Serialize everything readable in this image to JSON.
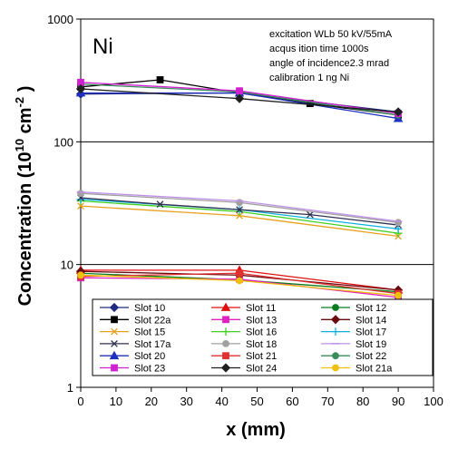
{
  "chart_data": {
    "type": "line",
    "element_label": "Ni",
    "xlabel": "x (mm)",
    "ylabel": {
      "prefix": "Concentration (10",
      "exp1": "10",
      "mid": " cm",
      "exp2": "-2",
      "suffix": " )"
    },
    "y_scale": "log",
    "ylim": [
      1,
      1000
    ],
    "xlim": [
      0,
      100
    ],
    "x_ticks": [
      0,
      10,
      20,
      30,
      40,
      50,
      60,
      70,
      80,
      90,
      100
    ],
    "y_ticks": [
      1,
      10,
      100,
      1000
    ],
    "y_gridlines": [
      10,
      100
    ],
    "annotations": [
      "excitation WLb 50 kV/55mA",
      "acqus ition time 1000s",
      "angle of incidence2.3 mrad",
      "calibration 1 ng Ni"
    ],
    "legend_position": "bottom",
    "series": [
      {
        "name": "Slot 10",
        "color": "#1f2a80",
        "marker": "diamond",
        "x": [
          0,
          45,
          90
        ],
        "y": [
          245,
          250,
          175
        ]
      },
      {
        "name": "Slot 11",
        "color": "#e01010",
        "marker": "triangle",
        "x": [
          0,
          45,
          90
        ],
        "y": [
          9,
          9,
          6.2
        ]
      },
      {
        "name": "Slot 12",
        "color": "#0a7d1e",
        "marker": "circle",
        "x": [
          0,
          45,
          90
        ],
        "y": [
          8.5,
          7.5,
          6
        ]
      },
      {
        "name": "Slot 22a",
        "color": "#000000",
        "marker": "square",
        "x": [
          0,
          22.5,
          45,
          65,
          90
        ],
        "y": [
          280,
          320,
          250,
          205,
          165
        ]
      },
      {
        "name": "Slot 13",
        "color": "#e020c0",
        "marker": "square",
        "x": [
          0,
          45,
          90
        ],
        "y": [
          7.8,
          7.6,
          5.4
        ]
      },
      {
        "name": "Slot 14",
        "color": "#6b0a10",
        "marker": "diamond",
        "x": [
          0,
          45,
          90
        ],
        "y": [
          8.8,
          8.2,
          6.2
        ]
      },
      {
        "name": "Slot 15",
        "color": "#e8a020",
        "marker": "x",
        "x": [
          0,
          45,
          90
        ],
        "y": [
          30,
          25,
          17
        ]
      },
      {
        "name": "Slot 16",
        "color": "#40d020",
        "marker": "plus",
        "x": [
          0,
          45,
          90
        ],
        "y": [
          33,
          27,
          18
        ]
      },
      {
        "name": "Slot 17",
        "color": "#10b0e0",
        "marker": "plus",
        "x": [
          0,
          45,
          90
        ],
        "y": [
          34,
          28,
          19.5
        ]
      },
      {
        "name": "Slot 17a",
        "color": "#303050",
        "marker": "x",
        "x": [
          0,
          22.5,
          45,
          65,
          90
        ],
        "y": [
          35,
          31,
          28,
          25.5,
          21
        ]
      },
      {
        "name": "Slot 18",
        "color": "#a0a0a0",
        "marker": "circle",
        "x": [
          0,
          45,
          90
        ],
        "y": [
          38,
          32,
          22
        ]
      },
      {
        "name": "Slot 19",
        "color": "#c090e8",
        "marker": "dash",
        "x": [
          0,
          45,
          90
        ],
        "y": [
          39,
          33,
          22.5
        ]
      },
      {
        "name": "Slot 20",
        "color": "#2030c0",
        "marker": "triangle",
        "x": [
          0,
          45,
          90
        ],
        "y": [
          250,
          250,
          155
        ]
      },
      {
        "name": "Slot 21",
        "color": "#e03030",
        "marker": "square",
        "x": [
          0,
          45,
          90
        ],
        "y": [
          8,
          8.5,
          5.8
        ]
      },
      {
        "name": "Slot 22",
        "color": "#3a8c5a",
        "marker": "circle",
        "x": [
          0,
          45,
          90
        ],
        "y": [
          295,
          255,
          165
        ]
      },
      {
        "name": "Slot 23",
        "color": "#d020d0",
        "marker": "square",
        "x": [
          0,
          45,
          90
        ],
        "y": [
          305,
          260,
          170
        ]
      },
      {
        "name": "Slot 24",
        "color": "#202020",
        "marker": "diamond",
        "x": [
          0,
          45,
          90
        ],
        "y": [
          270,
          225,
          175
        ]
      },
      {
        "name": "Slot 21a",
        "color": "#f0c010",
        "marker": "circle",
        "x": [
          0,
          45,
          90
        ],
        "y": [
          8.2,
          7.4,
          5.6
        ]
      }
    ]
  }
}
